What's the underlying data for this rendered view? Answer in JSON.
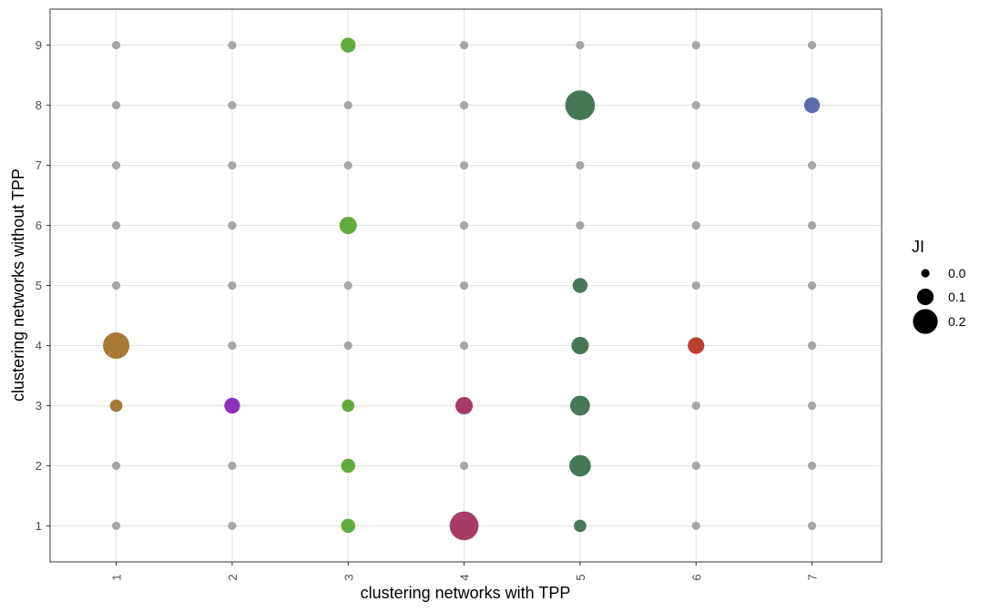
{
  "chart_data": {
    "type": "scatter",
    "xlabel": "clustering networks with TPP",
    "ylabel": "clustering networks without TPP",
    "x_ticks": [
      "1",
      "2",
      "3",
      "4",
      "5",
      "6",
      "7"
    ],
    "y_ticks": [
      "1",
      "2",
      "3",
      "4",
      "5",
      "6",
      "7",
      "8",
      "9"
    ],
    "xlim": [
      0.43,
      7.6
    ],
    "ylim": [
      0.4,
      9.6
    ],
    "grid": true,
    "zero_color": "#a6a6a6",
    "legend": {
      "title": "JI",
      "placement": "right",
      "entries": [
        {
          "label": "0.0",
          "value": 0.0
        },
        {
          "label": "0.1",
          "value": 0.1
        },
        {
          "label": "0.2",
          "value": 0.2
        }
      ]
    },
    "points": [
      {
        "x": 1,
        "y": 4,
        "ji": 0.22,
        "color": "#a87a35"
      },
      {
        "x": 1,
        "y": 3,
        "ji": 0.05,
        "color": "#a87a35"
      },
      {
        "x": 2,
        "y": 3,
        "ji": 0.09,
        "color": "#8d30bb"
      },
      {
        "x": 3,
        "y": 9,
        "ji": 0.08,
        "color": "#62aa3b"
      },
      {
        "x": 3,
        "y": 6,
        "ji": 0.11,
        "color": "#62aa3b"
      },
      {
        "x": 3,
        "y": 3,
        "ji": 0.05,
        "color": "#62aa3b"
      },
      {
        "x": 3,
        "y": 2,
        "ji": 0.07,
        "color": "#62aa3b"
      },
      {
        "x": 3,
        "y": 1,
        "ji": 0.07,
        "color": "#62aa3b"
      },
      {
        "x": 4,
        "y": 3,
        "ji": 0.11,
        "color": "#a63c67"
      },
      {
        "x": 4,
        "y": 1,
        "ji": 0.25,
        "color": "#a63c67"
      },
      {
        "x": 5,
        "y": 8,
        "ji": 0.26,
        "color": "#467858"
      },
      {
        "x": 5,
        "y": 5,
        "ji": 0.08,
        "color": "#467858"
      },
      {
        "x": 5,
        "y": 4,
        "ji": 0.11,
        "color": "#467858"
      },
      {
        "x": 5,
        "y": 3,
        "ji": 0.14,
        "color": "#467858"
      },
      {
        "x": 5,
        "y": 2,
        "ji": 0.16,
        "color": "#467858"
      },
      {
        "x": 5,
        "y": 1,
        "ji": 0.05,
        "color": "#467858"
      },
      {
        "x": 6,
        "y": 4,
        "ji": 0.1,
        "color": "#b9402e"
      },
      {
        "x": 7,
        "y": 8,
        "ji": 0.09,
        "color": "#5b6bac"
      }
    ]
  }
}
